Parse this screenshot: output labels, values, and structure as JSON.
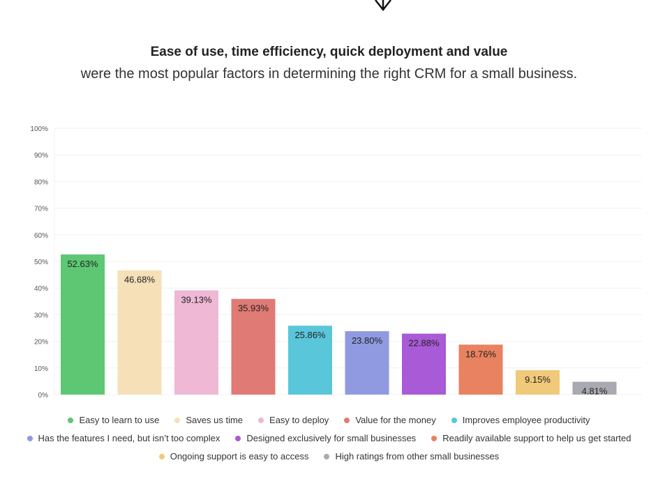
{
  "header": {
    "title": "Ease of use, time efficiency, quick deployment and value",
    "subtitle": "were the most popular factors in determining the right CRM for a small business."
  },
  "decor": {
    "icon": "down-arrow-icon"
  },
  "chart_data": {
    "type": "bar",
    "categories": [
      "Easy to learn to use",
      "Saves us time",
      "Easy to deploy",
      "Value for the money",
      "Improves employee productivity",
      "Has the features I need, but isn’t too complex",
      "Designed exclusively for small businesses",
      "Readily available support to help us get started",
      "Ongoing support is easy to access",
      "High ratings from other small businesses"
    ],
    "values": [
      52.63,
      46.68,
      39.13,
      35.93,
      25.86,
      23.8,
      22.88,
      18.76,
      9.15,
      4.81
    ],
    "data_labels": [
      "52.63%",
      "46.68%",
      "39.13%",
      "35.93%",
      "25.86%",
      "23.80%",
      "22.88%",
      "18.76%",
      "9.15%",
      "4.81%"
    ],
    "colors": [
      "#5dc774",
      "#f5e0b8",
      "#efb8d4",
      "#e07a74",
      "#5ac6da",
      "#8f9ae0",
      "#a95ad6",
      "#e88260",
      "#f0c97a",
      "#a9a9b2"
    ],
    "yticks": [
      "0%",
      "10%",
      "20%",
      "30%",
      "40%",
      "50%",
      "60%",
      "70%",
      "80%",
      "90%",
      "100%"
    ],
    "ylim": [
      0,
      100
    ],
    "grid": true,
    "legend_position": "bottom",
    "xlabel": "",
    "ylabel": ""
  }
}
